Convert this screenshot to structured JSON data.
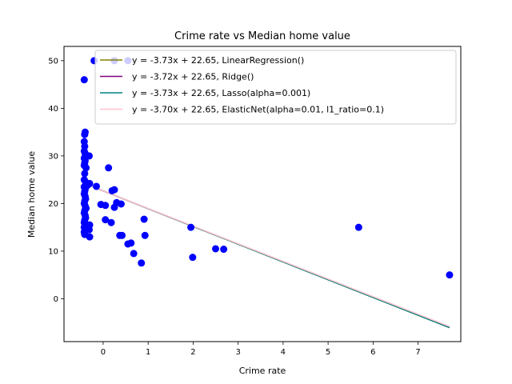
{
  "chart_data": {
    "type": "scatter",
    "title": "Crime rate vs Median home value",
    "xlabel": "Crime rate",
    "ylabel": "Median home value",
    "xlim": [
      -0.87,
      7.95
    ],
    "ylim": [
      -9.0,
      53.0
    ],
    "xticks": [
      0,
      1,
      2,
      3,
      4,
      5,
      6,
      7
    ],
    "yticks": [
      0,
      10,
      20,
      30,
      40,
      50
    ],
    "legend_position": "upper-right",
    "points_color": "#0000ff",
    "points": [
      [
        -0.42,
        46.0
      ],
      [
        -0.2,
        50.0
      ],
      [
        0.25,
        50.0
      ],
      [
        0.55,
        50.0
      ],
      [
        -0.4,
        35.0
      ],
      [
        -0.41,
        34.5
      ],
      [
        -0.42,
        33.0
      ],
      [
        -0.41,
        32.0
      ],
      [
        -0.42,
        31.0
      ],
      [
        -0.4,
        30.5
      ],
      [
        -0.39,
        30.0
      ],
      [
        -0.42,
        29.5
      ],
      [
        -0.4,
        29.0
      ],
      [
        -0.41,
        28.5
      ],
      [
        -0.42,
        28.0
      ],
      [
        -0.31,
        30.0
      ],
      [
        -0.38,
        27.5
      ],
      [
        -0.41,
        26.3
      ],
      [
        -0.42,
        25.0
      ],
      [
        -0.39,
        24.5
      ],
      [
        -0.37,
        24.0
      ],
      [
        -0.35,
        23.8
      ],
      [
        -0.3,
        24.2
      ],
      [
        -0.42,
        23.5
      ],
      [
        -0.4,
        23.0
      ],
      [
        -0.41,
        22.5
      ],
      [
        -0.42,
        22.0
      ],
      [
        -0.4,
        21.5
      ],
      [
        -0.39,
        21.0
      ],
      [
        -0.41,
        20.5
      ],
      [
        -0.42,
        20.0
      ],
      [
        -0.4,
        19.5
      ],
      [
        -0.38,
        19.0
      ],
      [
        -0.41,
        18.5
      ],
      [
        -0.42,
        18.0
      ],
      [
        -0.4,
        17.5
      ],
      [
        -0.39,
        17.0
      ],
      [
        -0.41,
        16.5
      ],
      [
        -0.42,
        16.0
      ],
      [
        -0.4,
        15.5
      ],
      [
        -0.3,
        15.5
      ],
      [
        -0.42,
        15.0
      ],
      [
        -0.4,
        14.5
      ],
      [
        -0.31,
        14.5
      ],
      [
        -0.42,
        14.0
      ],
      [
        -0.41,
        13.5
      ],
      [
        -0.3,
        13.0
      ],
      [
        -0.15,
        23.6
      ],
      [
        -0.05,
        19.8
      ],
      [
        0.05,
        19.6
      ],
      [
        0.12,
        27.5
      ],
      [
        0.2,
        22.7
      ],
      [
        0.25,
        22.9
      ],
      [
        0.25,
        19.2
      ],
      [
        0.3,
        20.2
      ],
      [
        0.4,
        19.9
      ],
      [
        0.05,
        16.6
      ],
      [
        0.18,
        16.0
      ],
      [
        0.37,
        13.3
      ],
      [
        0.42,
        13.3
      ],
      [
        0.55,
        11.5
      ],
      [
        0.62,
        11.7
      ],
      [
        0.68,
        9.5
      ],
      [
        0.85,
        7.5
      ],
      [
        0.91,
        16.7
      ],
      [
        0.93,
        13.3
      ],
      [
        1.95,
        15.0
      ],
      [
        1.99,
        8.7
      ],
      [
        2.5,
        10.5
      ],
      [
        2.68,
        10.4
      ],
      [
        5.68,
        15.0
      ],
      [
        7.7,
        5.0
      ]
    ],
    "series": [
      {
        "name": "y = -3.73x + 22.65, LinearRegression()",
        "color": "#808000",
        "slope": -3.73,
        "intercept": 22.65,
        "x_range": [
          -0.42,
          7.7
        ]
      },
      {
        "name": "y = -3.72x + 22.65, Ridge()",
        "color": "#800080",
        "slope": -3.72,
        "intercept": 22.65,
        "x_range": [
          -0.42,
          7.7
        ]
      },
      {
        "name": "y = -3.73x + 22.65, Lasso(alpha=0.001)",
        "color": "#008080",
        "slope": -3.73,
        "intercept": 22.65,
        "x_range": [
          -0.42,
          7.7
        ]
      },
      {
        "name": "y = -3.70x + 22.65, ElasticNet(alpha=0.01, l1_ratio=0.1)",
        "color": "#ffc0cb",
        "slope": -3.7,
        "intercept": 22.65,
        "x_range": [
          -0.42,
          7.7
        ]
      }
    ]
  }
}
